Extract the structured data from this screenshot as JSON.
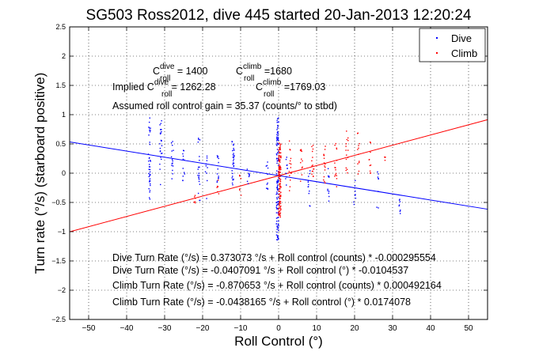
{
  "chart_data": {
    "type": "scatter",
    "title": "SG503 Ross2012, dive 445 started 20-Jan-2013 12:20:24",
    "xlabel": "Roll Control (°)",
    "ylabel": "Turn rate (°/s) (starboard positive)",
    "xlim": [
      -55,
      55
    ],
    "ylim": [
      -2.5,
      2.5
    ],
    "xticks": [
      -50,
      -40,
      -30,
      -20,
      -10,
      0,
      10,
      20,
      30,
      40,
      50
    ],
    "yticks": [
      -2.5,
      -2,
      -1.5,
      -1,
      -0.5,
      0,
      0.5,
      1,
      1.5,
      2,
      2.5
    ],
    "grid": true,
    "legend": {
      "placement": "top-right",
      "entries": [
        {
          "label": "Dive",
          "color": "#0000ff"
        },
        {
          "label": "Climb",
          "color": "#ff0000"
        }
      ]
    },
    "fit_lines": [
      {
        "name": "Dive",
        "color": "#0000ff",
        "intercept": -0.0407091,
        "slope": -0.0104537
      },
      {
        "name": "Climb",
        "color": "#ff0000",
        "intercept": -0.0438165,
        "slope": 0.0174078
      }
    ],
    "series": [
      {
        "name": "Dive",
        "color": "#0000ff",
        "clusters": [
          {
            "x": -34,
            "ymin": -0.45,
            "ymax": 0.95,
            "n": 40
          },
          {
            "x": -31,
            "ymin": -0.2,
            "ymax": 0.9,
            "n": 25
          },
          {
            "x": -28,
            "ymin": -0.1,
            "ymax": 0.6,
            "n": 15
          },
          {
            "x": -25,
            "ymin": -0.2,
            "ymax": 0.4,
            "n": 12
          },
          {
            "x": -21,
            "ymin": -0.5,
            "ymax": 0.65,
            "n": 20
          },
          {
            "x": -19,
            "ymin": -0.5,
            "ymax": 0.3,
            "n": 10
          },
          {
            "x": -16,
            "ymin": -0.2,
            "ymax": 0.35,
            "n": 12
          },
          {
            "x": -12,
            "ymin": -0.2,
            "ymax": 0.55,
            "n": 30
          },
          {
            "x": -8,
            "ymin": -0.2,
            "ymax": 0.2,
            "n": 8
          },
          {
            "x": -3,
            "ymin": -0.3,
            "ymax": 0.2,
            "n": 10
          },
          {
            "x": -0.3,
            "ymin": -1.15,
            "ymax": 0.95,
            "n": 120
          },
          {
            "x": 2,
            "ymin": -0.3,
            "ymax": 0.3,
            "n": 10
          },
          {
            "x": 8,
            "ymin": -0.6,
            "ymax": 0.1,
            "n": 12
          },
          {
            "x": 13,
            "ymin": -0.55,
            "ymax": 0.1,
            "n": 10
          },
          {
            "x": 20,
            "ymin": -0.6,
            "ymax": 0.2,
            "n": 8
          },
          {
            "x": 26,
            "ymin": -0.6,
            "ymax": 0.1,
            "n": 8
          },
          {
            "x": 32,
            "ymin": -0.7,
            "ymax": -0.4,
            "n": 8
          }
        ]
      },
      {
        "name": "Climb",
        "color": "#ff0000",
        "clusters": [
          {
            "x": -22,
            "ymin": -0.55,
            "ymax": -0.3,
            "n": 6
          },
          {
            "x": -16,
            "ymin": -0.4,
            "ymax": -0.1,
            "n": 6
          },
          {
            "x": -10,
            "ymin": -0.4,
            "ymax": 0.0,
            "n": 6
          },
          {
            "x": 0.3,
            "ymin": -0.75,
            "ymax": 0.55,
            "n": 120
          },
          {
            "x": 3,
            "ymin": -0.3,
            "ymax": 0.6,
            "n": 15
          },
          {
            "x": 6,
            "ymin": -0.2,
            "ymax": 0.5,
            "n": 12
          },
          {
            "x": 9,
            "ymin": -0.1,
            "ymax": 0.5,
            "n": 15
          },
          {
            "x": 12,
            "ymin": -0.2,
            "ymax": 0.5,
            "n": 15
          },
          {
            "x": 15,
            "ymin": -0.3,
            "ymax": 0.6,
            "n": 15
          },
          {
            "x": 18,
            "ymin": 0.0,
            "ymax": 0.75,
            "n": 15
          },
          {
            "x": 21,
            "ymin": -0.05,
            "ymax": 0.75,
            "n": 12
          },
          {
            "x": 24,
            "ymin": 0.0,
            "ymax": 0.55,
            "n": 10
          },
          {
            "x": 28,
            "ymin": 0.2,
            "ymax": 0.3,
            "n": 4
          }
        ]
      }
    ],
    "annotations": {
      "c_dive_label": "C",
      "c_dive_sup": "dive",
      "c_dive_sub": "roll",
      "c_dive_value": " = 1400",
      "c_climb_label": "C",
      "c_climb_sup": "climb",
      "c_climb_sub": "roll",
      "c_climb_value": " =1680",
      "implied_prefix": "Implied ",
      "implied_dive_label": "C",
      "implied_dive_sup": "dive",
      "implied_dive_sub": "roll",
      "implied_dive_value": " = 1262.28",
      "implied_climb_label": "C",
      "implied_climb_sup": "climb",
      "implied_climb_sub": "roll",
      "implied_climb_value": " =1769.03",
      "assumed_gain": "Assumed roll control gain = 35.37 (counts/° to stbd)",
      "fit_dive_counts": "Dive Turn Rate (°/s) = 0.373073 °/s + Roll control (counts) * -0.000295554",
      "fit_dive_deg": "Dive Turn Rate (°/s) = -0.0407091 °/s + Roll control (°) * -0.0104537",
      "fit_climb_counts": "Climb Turn Rate (°/s) = -0.870653 °/s + Roll control (counts) * 0.000492164",
      "fit_climb_deg": "Climb Turn Rate (°/s) = -0.0438165 °/s + Roll control (°) * 0.0174078"
    }
  }
}
